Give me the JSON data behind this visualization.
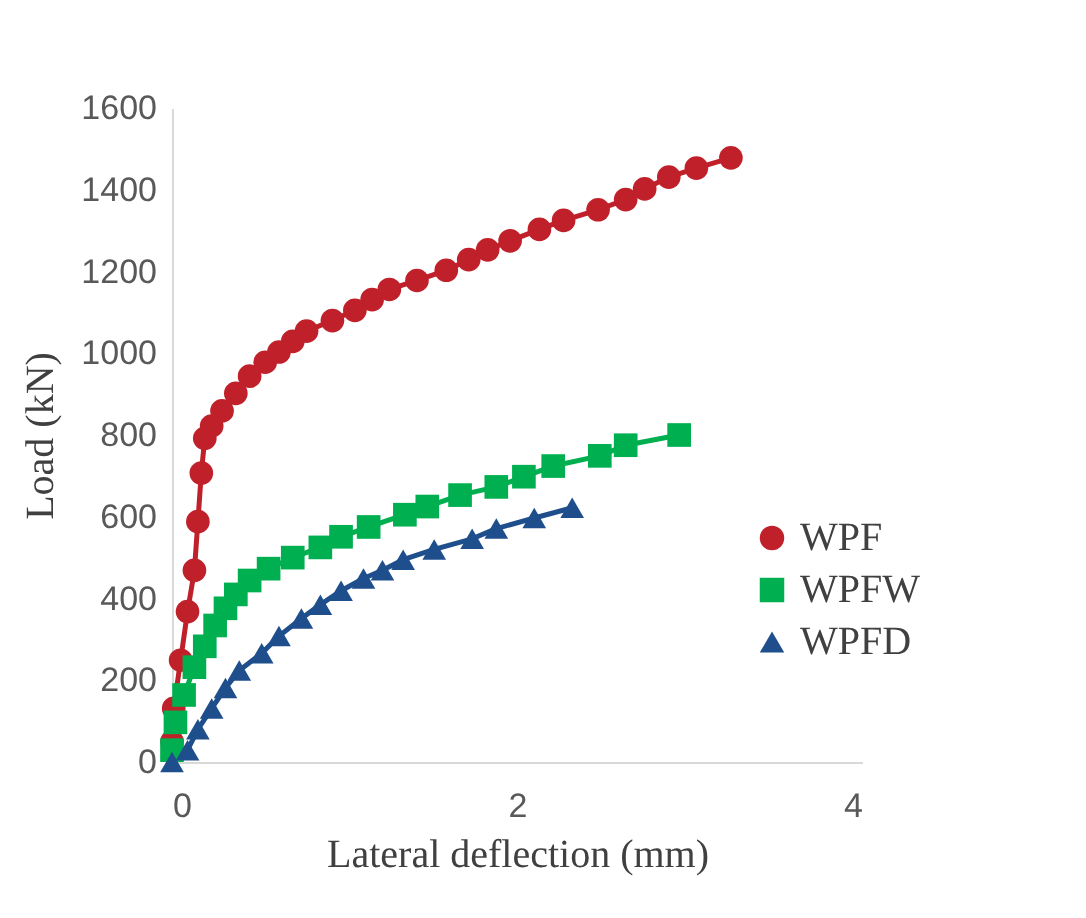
{
  "chart_data": {
    "type": "line",
    "xlabel": "Lateral deflection (mm)",
    "ylabel": "Load (kN)",
    "xlim": [
      0,
      4
    ],
    "xticks": [
      0,
      2,
      4
    ],
    "ylim": [
      0,
      1600
    ],
    "yticks": [
      0,
      200,
      400,
      600,
      800,
      1000,
      1200,
      1400,
      1600
    ],
    "grid": false,
    "legend": "right",
    "line_style": "solid",
    "series": [
      {
        "name": "WPF",
        "color": "#c0202a",
        "marker": "circle",
        "x": [
          0,
          0.01,
          0.05,
          0.09,
          0.13,
          0.15,
          0.17,
          0.19,
          0.23,
          0.29,
          0.37,
          0.45,
          0.54,
          0.62,
          0.7,
          0.78,
          0.93,
          1.06,
          1.16,
          1.26,
          1.42,
          1.59,
          1.72,
          1.83,
          1.96,
          2.13,
          2.27,
          2.47,
          2.63,
          2.74,
          2.88,
          3.04,
          3.24
        ],
        "values": [
          50,
          131,
          249,
          368,
          469,
          588,
          707,
          792,
          822,
          859,
          902,
          944,
          978,
          1003,
          1029,
          1054,
          1080,
          1105,
          1131,
          1156,
          1178,
          1203,
          1229,
          1253,
          1275,
          1303,
          1325,
          1351,
          1376,
          1402,
          1431,
          1453,
          1478
        ]
      },
      {
        "name": "WPFW",
        "color": "#00b050",
        "marker": "square",
        "x": [
          0,
          0.02,
          0.07,
          0.13,
          0.19,
          0.25,
          0.31,
          0.37,
          0.45,
          0.56,
          0.7,
          0.86,
          0.98,
          1.14,
          1.35,
          1.48,
          1.67,
          1.88,
          2.04,
          2.21,
          2.48,
          2.63,
          2.94
        ],
        "values": [
          29,
          97,
          164,
          232,
          283,
          334,
          376,
          410,
          444,
          473,
          500,
          525,
          551,
          575,
          605,
          625,
          653,
          673,
          698,
          724,
          749,
          775,
          800
        ]
      },
      {
        "name": "WPFD",
        "color": "#1f4e8c",
        "marker": "triangle",
        "x": [
          0,
          0.09,
          0.15,
          0.23,
          0.31,
          0.39,
          0.52,
          0.62,
          0.75,
          0.86,
          0.98,
          1.11,
          1.22,
          1.34,
          1.52,
          1.74,
          1.88,
          2.1,
          2.32
        ],
        "values": [
          0,
          29,
          80,
          131,
          181,
          224,
          266,
          308,
          351,
          385,
          419,
          449,
          469,
          495,
          520,
          546,
          571,
          597,
          622
        ]
      }
    ]
  }
}
